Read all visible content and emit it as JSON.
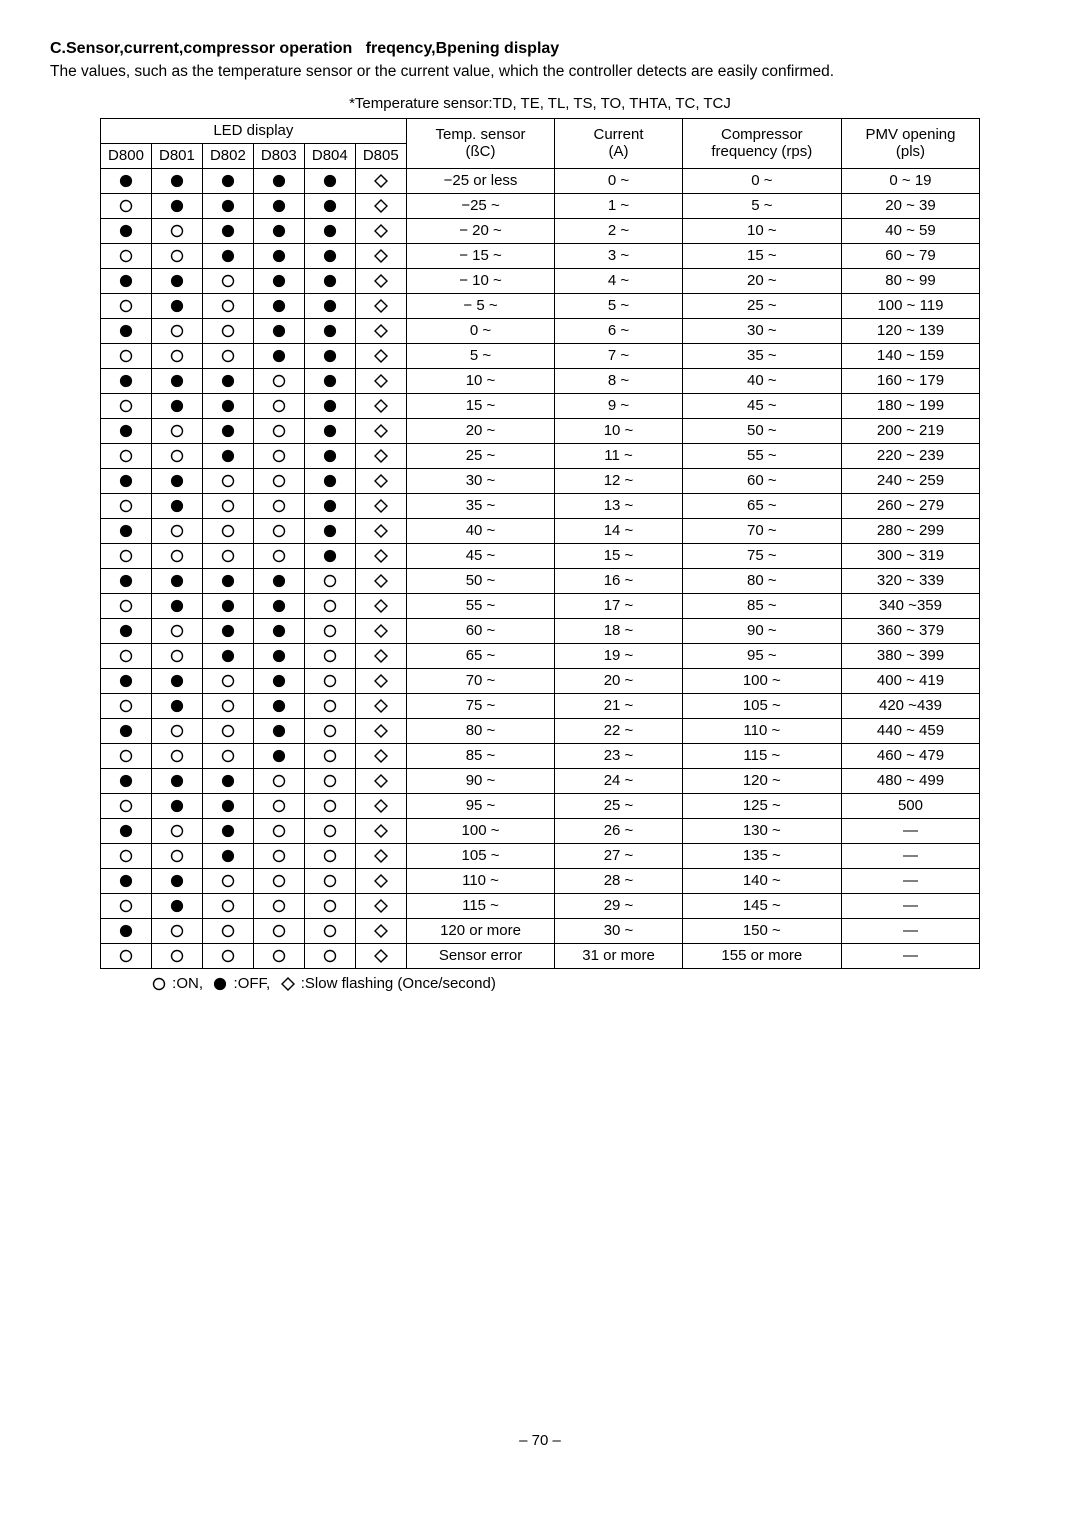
{
  "section_title_a": "C.Sensor,current,compressor operation",
  "section_title_b": "freqency,Bpening display",
  "intro_text": "The values, such as the temperature sensor or the current value, which the controller detects are easily confirmed.",
  "table_caption": "*Temperature sensor:TD, TE, TL, TS, TO, THTA, TC, TCJ",
  "headers": {
    "led_display": "LED display",
    "d800": "D800",
    "d801": "D801",
    "d802": "D802",
    "d803": "D803",
    "d804": "D804",
    "d805": "D805",
    "temp_sensor_top": "Temp. sensor",
    "temp_sensor_bot": "(ßC)",
    "current_top": "Current",
    "current_bot": "(A)",
    "freq_top": "Compressor",
    "freq_bot": "frequency (rps)",
    "pmv_top": "PMV opening",
    "pmv_bot": "(pls)"
  },
  "rows": [
    {
      "leds": [
        "f",
        "f",
        "f",
        "f",
        "f",
        "d"
      ],
      "temp": "−25 or less",
      "cur": "0 ~",
      "freq": "0 ~",
      "pmv": "0 ~ 19"
    },
    {
      "leds": [
        "o",
        "f",
        "f",
        "f",
        "f",
        "d"
      ],
      "temp": "−25 ~",
      "cur": "1 ~",
      "freq": "5 ~",
      "pmv": "20 ~ 39"
    },
    {
      "leds": [
        "f",
        "o",
        "f",
        "f",
        "f",
        "d"
      ],
      "temp": "− 20 ~",
      "cur": "2 ~",
      "freq": "10 ~",
      "pmv": "40 ~ 59"
    },
    {
      "leds": [
        "o",
        "o",
        "f",
        "f",
        "f",
        "d"
      ],
      "temp": "− 15 ~",
      "cur": "3 ~",
      "freq": "15 ~",
      "pmv": "60 ~ 79"
    },
    {
      "leds": [
        "f",
        "f",
        "o",
        "f",
        "f",
        "d"
      ],
      "temp": "− 10 ~",
      "cur": "4 ~",
      "freq": "20 ~",
      "pmv": "80 ~ 99"
    },
    {
      "leds": [
        "o",
        "f",
        "o",
        "f",
        "f",
        "d"
      ],
      "temp": "− 5 ~",
      "cur": "5 ~",
      "freq": "25 ~",
      "pmv": "100 ~ 119"
    },
    {
      "leds": [
        "f",
        "o",
        "o",
        "f",
        "f",
        "d"
      ],
      "temp": "0 ~",
      "cur": "6 ~",
      "freq": "30 ~",
      "pmv": "120 ~ 139"
    },
    {
      "leds": [
        "o",
        "o",
        "o",
        "f",
        "f",
        "d"
      ],
      "temp": "5 ~",
      "cur": "7 ~",
      "freq": "35 ~",
      "pmv": "140 ~ 159"
    },
    {
      "leds": [
        "f",
        "f",
        "f",
        "o",
        "f",
        "d"
      ],
      "temp": "10 ~",
      "cur": "8 ~",
      "freq": "40 ~",
      "pmv": "160 ~ 179"
    },
    {
      "leds": [
        "o",
        "f",
        "f",
        "o",
        "f",
        "d"
      ],
      "temp": "15 ~",
      "cur": "9 ~",
      "freq": "45 ~",
      "pmv": "180 ~ 199"
    },
    {
      "leds": [
        "f",
        "o",
        "f",
        "o",
        "f",
        "d"
      ],
      "temp": "20 ~",
      "cur": "10 ~",
      "freq": "50 ~",
      "pmv": "200 ~ 219"
    },
    {
      "leds": [
        "o",
        "o",
        "f",
        "o",
        "f",
        "d"
      ],
      "temp": "25 ~",
      "cur": "11 ~",
      "freq": "55 ~",
      "pmv": "220 ~ 239"
    },
    {
      "leds": [
        "f",
        "f",
        "o",
        "o",
        "f",
        "d"
      ],
      "temp": "30 ~",
      "cur": "12 ~",
      "freq": "60 ~",
      "pmv": "240 ~ 259"
    },
    {
      "leds": [
        "o",
        "f",
        "o",
        "o",
        "f",
        "d"
      ],
      "temp": "35 ~",
      "cur": "13 ~",
      "freq": "65 ~",
      "pmv": "260 ~ 279"
    },
    {
      "leds": [
        "f",
        "o",
        "o",
        "o",
        "f",
        "d"
      ],
      "temp": "40 ~",
      "cur": "14 ~",
      "freq": "70 ~",
      "pmv": "280 ~ 299"
    },
    {
      "leds": [
        "o",
        "o",
        "o",
        "o",
        "f",
        "d"
      ],
      "temp": "45 ~",
      "cur": "15 ~",
      "freq": "75 ~",
      "pmv": "300 ~ 319"
    },
    {
      "leds": [
        "f",
        "f",
        "f",
        "f",
        "o",
        "d"
      ],
      "temp": "50 ~",
      "cur": "16 ~",
      "freq": "80 ~",
      "pmv": "320 ~ 339"
    },
    {
      "leds": [
        "o",
        "f",
        "f",
        "f",
        "o",
        "d"
      ],
      "temp": "55 ~",
      "cur": "17 ~",
      "freq": "85 ~",
      "pmv": "340 ~359"
    },
    {
      "leds": [
        "f",
        "o",
        "f",
        "f",
        "o",
        "d"
      ],
      "temp": "60 ~",
      "cur": "18 ~",
      "freq": "90 ~",
      "pmv": "360 ~ 379"
    },
    {
      "leds": [
        "o",
        "o",
        "f",
        "f",
        "o",
        "d"
      ],
      "temp": "65 ~",
      "cur": "19 ~",
      "freq": "95 ~",
      "pmv": "380 ~ 399"
    },
    {
      "leds": [
        "f",
        "f",
        "o",
        "f",
        "o",
        "d"
      ],
      "temp": "70 ~",
      "cur": "20 ~",
      "freq": "100 ~",
      "pmv": "400 ~ 419"
    },
    {
      "leds": [
        "o",
        "f",
        "o",
        "f",
        "o",
        "d"
      ],
      "temp": "75 ~",
      "cur": "21 ~",
      "freq": "105 ~",
      "pmv": "420 ~439"
    },
    {
      "leds": [
        "f",
        "o",
        "o",
        "f",
        "o",
        "d"
      ],
      "temp": "80 ~",
      "cur": "22 ~",
      "freq": "110 ~",
      "pmv": "440 ~ 459"
    },
    {
      "leds": [
        "o",
        "o",
        "o",
        "f",
        "o",
        "d"
      ],
      "temp": "85 ~",
      "cur": "23 ~",
      "freq": "115 ~",
      "pmv": "460 ~ 479"
    },
    {
      "leds": [
        "f",
        "f",
        "f",
        "o",
        "o",
        "d"
      ],
      "temp": "90 ~",
      "cur": "24 ~",
      "freq": "120 ~",
      "pmv": "480 ~ 499"
    },
    {
      "leds": [
        "o",
        "f",
        "f",
        "o",
        "o",
        "d"
      ],
      "temp": "95 ~",
      "cur": "25 ~",
      "freq": "125 ~",
      "pmv": "500"
    },
    {
      "leds": [
        "f",
        "o",
        "f",
        "o",
        "o",
        "d"
      ],
      "temp": "100 ~",
      "cur": "26 ~",
      "freq": "130 ~",
      "pmv": "—"
    },
    {
      "leds": [
        "o",
        "o",
        "f",
        "o",
        "o",
        "d"
      ],
      "temp": "105 ~",
      "cur": "27 ~",
      "freq": "135 ~",
      "pmv": "—"
    },
    {
      "leds": [
        "f",
        "f",
        "o",
        "o",
        "o",
        "d"
      ],
      "temp": "110 ~",
      "cur": "28 ~",
      "freq": "140 ~",
      "pmv": "—"
    },
    {
      "leds": [
        "o",
        "f",
        "o",
        "o",
        "o",
        "d"
      ],
      "temp": "115 ~",
      "cur": "29 ~",
      "freq": "145 ~",
      "pmv": "—"
    },
    {
      "leds": [
        "f",
        "o",
        "o",
        "o",
        "o",
        "d"
      ],
      "temp": "120  or more",
      "cur": "30 ~",
      "freq": "150 ~",
      "pmv": "—"
    },
    {
      "leds": [
        "o",
        "o",
        "o",
        "o",
        "o",
        "d"
      ],
      "temp": "Sensor error",
      "cur": "31 or more",
      "freq": "155 or more",
      "pmv": "—"
    }
  ],
  "legend": {
    "on": ":ON,",
    "off": ":OFF,",
    "flash": ":Slow flashing (Once/second)"
  },
  "page_number": "– 70 –",
  "symbols": {
    "filled_circle": {
      "size": 14,
      "stroke": "#000",
      "stroke_width": 1.2
    },
    "open_circle": {
      "size": 14,
      "stroke": "#000",
      "stroke_width": 1.4
    },
    "diamond": {
      "size": 14,
      "stroke": "#000",
      "stroke_width": 1.4
    }
  }
}
